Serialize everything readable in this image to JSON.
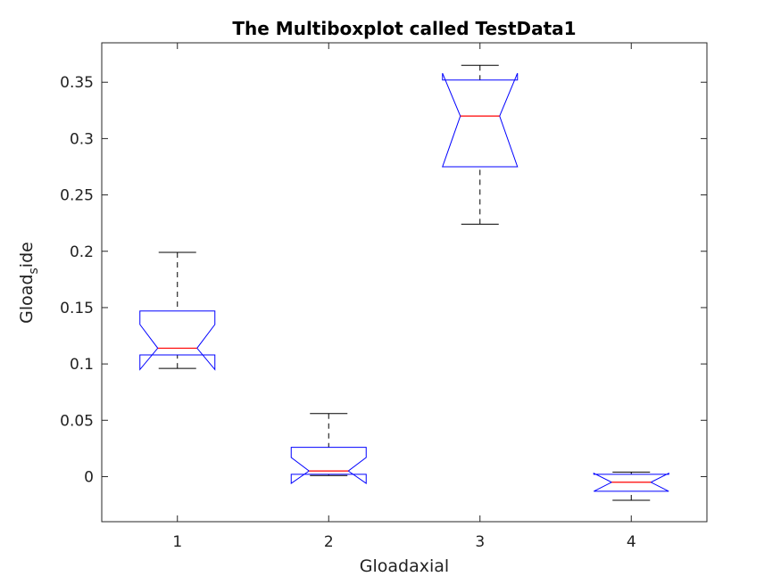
{
  "chart_data": {
    "type": "boxplot",
    "title": "The Multiboxplot called TestData1",
    "xlabel": "Gloadaxial",
    "ylabel": {
      "main": "Gload",
      "subscript": "s",
      "suffix": "ide"
    },
    "categories": [
      "1",
      "2",
      "3",
      "4"
    ],
    "yticks": [
      "0",
      "0.05",
      "0.1",
      "0.15",
      "0.2",
      "0.25",
      "0.3",
      "0.35"
    ],
    "ytick_values": [
      0,
      0.05,
      0.1,
      0.15,
      0.2,
      0.25,
      0.3,
      0.35
    ],
    "ylim": [
      -0.04,
      0.385
    ],
    "xlim": [
      0.5,
      4.5
    ],
    "notched": true,
    "boxes": [
      {
        "category": "1",
        "whisker_low": 0.096,
        "q1": 0.108,
        "median": 0.114,
        "q3": 0.147,
        "whisker_high": 0.199,
        "notch_low": 0.095,
        "notch_high": 0.135
      },
      {
        "category": "2",
        "whisker_low": 0.001,
        "q1": 0.002,
        "median": 0.005,
        "q3": 0.026,
        "whisker_high": 0.056,
        "notch_low": -0.006,
        "notch_high": 0.017
      },
      {
        "category": "3",
        "whisker_low": 0.224,
        "q1": 0.275,
        "median": 0.32,
        "q3": 0.352,
        "whisker_high": 0.365,
        "notch_low": 0.275,
        "notch_high": 0.358
      },
      {
        "category": "4",
        "whisker_low": -0.021,
        "q1": -0.013,
        "median": -0.005,
        "q3": 0.002,
        "whisker_high": 0.004,
        "notch_low": -0.013,
        "notch_high": 0.003
      }
    ],
    "colors": {
      "box": "#0000ff",
      "median": "#ff0000",
      "whisker": "#000000",
      "axes": "#262626"
    },
    "grid": false
  }
}
